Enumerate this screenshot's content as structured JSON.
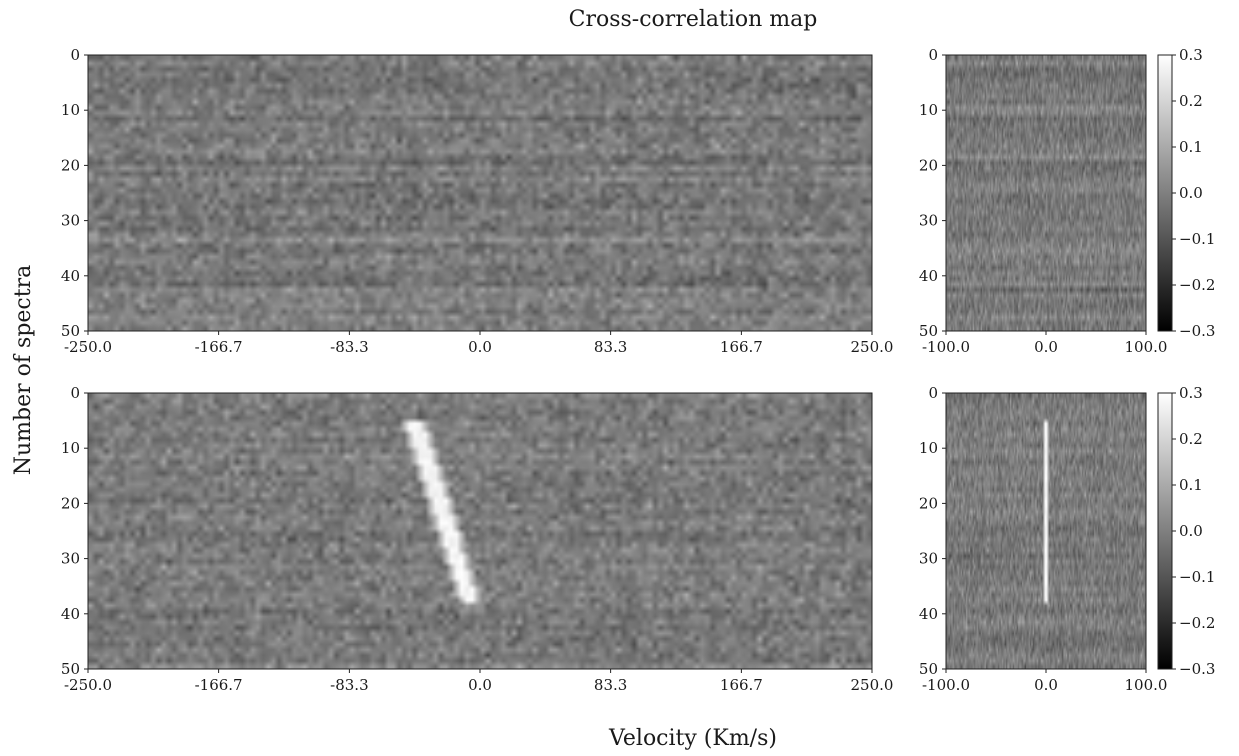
{
  "figure": {
    "title": "Cross-correlation map",
    "xlabel": "Velocity (Km/s)",
    "ylabel": "Number of spectra"
  },
  "chart_data": [
    {
      "type": "heatmap",
      "panel": "top-left",
      "x_range": [
        -250.0,
        250.0
      ],
      "y_range": [
        0,
        50
      ],
      "y_inverted": true,
      "x_tick_labels": [
        "-250.0",
        "-166.7",
        "-83.3",
        "0.0",
        "83.3",
        "166.7",
        "250.0"
      ],
      "y_tick_labels": [
        "0",
        "10",
        "20",
        "30",
        "40",
        "50"
      ],
      "colormap": "gray",
      "value_range": [
        -0.3,
        0.3
      ],
      "signal_trail": null
    },
    {
      "type": "heatmap",
      "panel": "top-right",
      "x_range": [
        -100.0,
        100.0
      ],
      "y_range": [
        0,
        50
      ],
      "y_inverted": true,
      "x_tick_labels": [
        "-100.0",
        "0.0",
        "100.0"
      ],
      "y_tick_labels": [
        "0",
        "10",
        "20",
        "30",
        "40",
        "50"
      ],
      "colormap": "gray",
      "value_range": [
        -0.3,
        0.3
      ],
      "colorbar_ticks": [
        "0.3",
        "0.2",
        "0.1",
        "0.0",
        "−0.1",
        "−0.2",
        "−0.3"
      ],
      "signal_trail": null
    },
    {
      "type": "heatmap",
      "panel": "bottom-left",
      "x_range": [
        -250.0,
        250.0
      ],
      "y_range": [
        0,
        50
      ],
      "y_inverted": true,
      "x_tick_labels": [
        "-250.0",
        "-166.7",
        "-83.3",
        "0.0",
        "83.3",
        "166.7",
        "250.0"
      ],
      "y_tick_labels": [
        "0",
        "10",
        "20",
        "30",
        "40",
        "50"
      ],
      "colormap": "gray",
      "value_range": [
        -0.3,
        0.3
      ],
      "signal_trail": {
        "start": {
          "x": -42,
          "y": 5
        },
        "end": {
          "x": -6,
          "y": 38
        },
        "peak": 0.3
      }
    },
    {
      "type": "heatmap",
      "panel": "bottom-right",
      "x_range": [
        -100.0,
        100.0
      ],
      "y_range": [
        0,
        50
      ],
      "y_inverted": true,
      "x_tick_labels": [
        "-100.0",
        "0.0",
        "100.0"
      ],
      "y_tick_labels": [
        "0",
        "10",
        "20",
        "30",
        "40",
        "50"
      ],
      "colormap": "gray",
      "value_range": [
        -0.3,
        0.3
      ],
      "colorbar_ticks": [
        "0.3",
        "0.2",
        "0.1",
        "0.0",
        "−0.1",
        "−0.2",
        "−0.3"
      ],
      "signal_trail": {
        "start": {
          "x": 0,
          "y": 5
        },
        "end": {
          "x": 0,
          "y": 38
        },
        "peak": 0.3
      }
    }
  ]
}
